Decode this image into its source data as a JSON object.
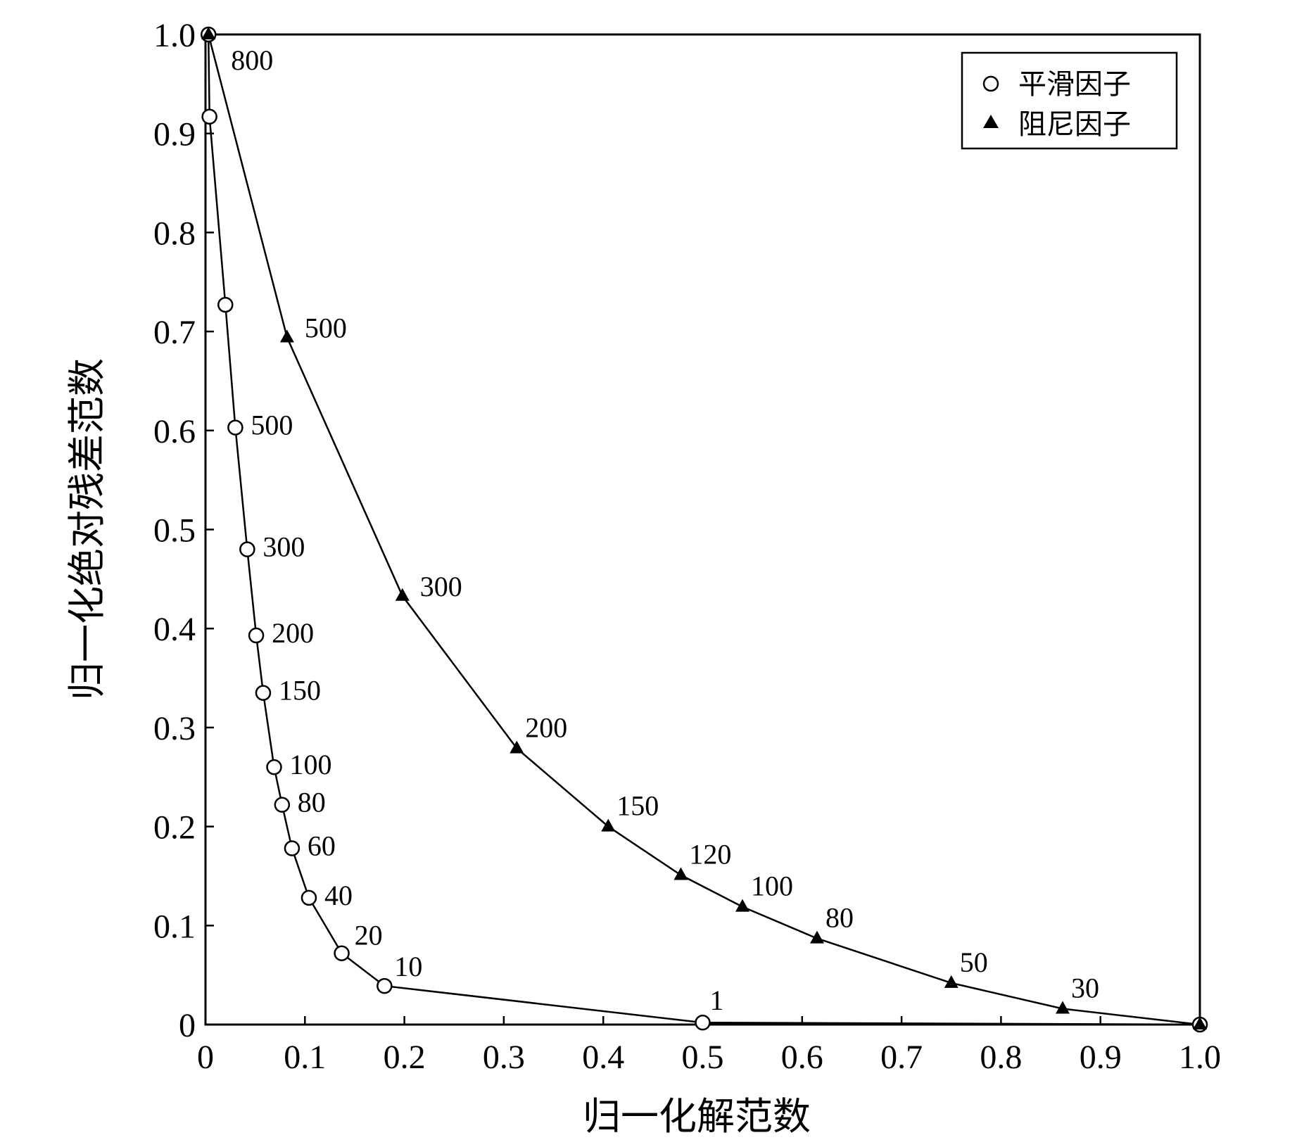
{
  "chart_data": {
    "type": "line",
    "title": "",
    "xlabel": "归一化解范数",
    "ylabel": "归一化绝对残差范数",
    "xlim": [
      0,
      1.0
    ],
    "ylim": [
      0,
      1.0
    ],
    "x_ticks": [
      "0",
      "0.1",
      "0.2",
      "0.3",
      "0.4",
      "0.5",
      "0.6",
      "0.7",
      "0.8",
      "0.9",
      "1.0"
    ],
    "y_ticks": [
      "0",
      "0.1",
      "0.2",
      "0.3",
      "0.4",
      "0.5",
      "0.6",
      "0.7",
      "0.8",
      "0.9",
      "1.0"
    ],
    "grid": false,
    "legend_position": "top-right",
    "series": [
      {
        "name": "平滑因子",
        "marker": "circle-open",
        "points": [
          {
            "x": 0.003,
            "y": 1.0,
            "label": "800"
          },
          {
            "x": 0.004,
            "y": 0.917,
            "label": ""
          },
          {
            "x": 0.02,
            "y": 0.727,
            "label": ""
          },
          {
            "x": 0.03,
            "y": 0.603,
            "label": "500"
          },
          {
            "x": 0.042,
            "y": 0.48,
            "label": "300"
          },
          {
            "x": 0.051,
            "y": 0.393,
            "label": "200"
          },
          {
            "x": 0.058,
            "y": 0.335,
            "label": "150"
          },
          {
            "x": 0.069,
            "y": 0.26,
            "label": "100"
          },
          {
            "x": 0.077,
            "y": 0.222,
            "label": "80"
          },
          {
            "x": 0.087,
            "y": 0.178,
            "label": "60"
          },
          {
            "x": 0.104,
            "y": 0.128,
            "label": "40"
          },
          {
            "x": 0.137,
            "y": 0.072,
            "label": "20"
          },
          {
            "x": 0.18,
            "y": 0.039,
            "label": "10"
          },
          {
            "x": 0.5,
            "y": 0.002,
            "label": "1"
          },
          {
            "x": 1.0,
            "y": 0.0,
            "label": ""
          }
        ]
      },
      {
        "name": "阻尼因子",
        "marker": "triangle-filled",
        "points": [
          {
            "x": 0.003,
            "y": 1.0,
            "label": ""
          },
          {
            "x": 0.082,
            "y": 0.694,
            "label": "500"
          },
          {
            "x": 0.198,
            "y": 0.433,
            "label": "300"
          },
          {
            "x": 0.313,
            "y": 0.279,
            "label": "200"
          },
          {
            "x": 0.405,
            "y": 0.2,
            "label": "150"
          },
          {
            "x": 0.478,
            "y": 0.151,
            "label": "120"
          },
          {
            "x": 0.54,
            "y": 0.119,
            "label": "100"
          },
          {
            "x": 0.615,
            "y": 0.087,
            "label": "80"
          },
          {
            "x": 0.75,
            "y": 0.042,
            "label": "50"
          },
          {
            "x": 0.862,
            "y": 0.016,
            "label": "30"
          },
          {
            "x": 1.0,
            "y": 0.0,
            "label": ""
          }
        ]
      }
    ]
  }
}
